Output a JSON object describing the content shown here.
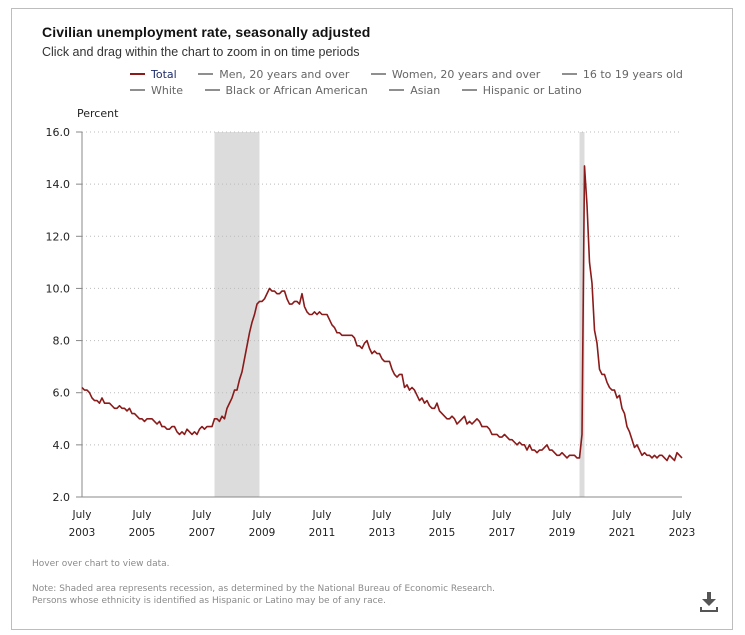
{
  "header": {
    "title": "Civilian unemployment rate, seasonally adjusted",
    "subtitle": "Click and drag within the chart to zoom in on time periods"
  },
  "legend": {
    "rows": [
      [
        {
          "label": "Total",
          "active": true
        },
        {
          "label": "Men, 20 years and over",
          "active": false
        },
        {
          "label": "Women, 20 years and over",
          "active": false
        },
        {
          "label": "16 to 19 years old",
          "active": false
        }
      ],
      [
        {
          "label": "White",
          "active": false
        },
        {
          "label": "Black or African American",
          "active": false
        },
        {
          "label": "Asian",
          "active": false
        },
        {
          "label": "Hispanic or Latino",
          "active": false
        }
      ]
    ]
  },
  "footer": {
    "hover_hint": "Hover over chart to view data.",
    "note_line1": "Note: Shaded area represents recession, as determined by the National Bureau of Economic Research.",
    "note_line2": "Persons whose ethnicity is identified as Hispanic or Latino may be of any race.",
    "download_icon": "download-icon"
  },
  "colors": {
    "series_total": "#8b1a1a",
    "recession_shade": "#dcdcdc",
    "gridline": "#bbbbbb",
    "axis": "#888888"
  },
  "chart_data": {
    "type": "line",
    "title": "Civilian unemployment rate, seasonally adjusted",
    "ylabel": "Percent",
    "xlabel": "",
    "ylim": [
      2.0,
      16.0
    ],
    "yticks": [
      "16.0",
      "14.0",
      "12.0",
      "10.0",
      "8.0",
      "6.0",
      "4.0",
      "2.0"
    ],
    "ytick_values": [
      16,
      14,
      12,
      10,
      8,
      6,
      4,
      2
    ],
    "xlim": [
      "2003-07",
      "2023-07"
    ],
    "xticks": [
      {
        "month": "July",
        "year": "2003",
        "date": "2003-07"
      },
      {
        "month": "July",
        "year": "2005",
        "date": "2005-07"
      },
      {
        "month": "July",
        "year": "2007",
        "date": "2007-07"
      },
      {
        "month": "July",
        "year": "2009",
        "date": "2009-07"
      },
      {
        "month": "July",
        "year": "2011",
        "date": "2011-07"
      },
      {
        "month": "July",
        "year": "2013",
        "date": "2013-07"
      },
      {
        "month": "July",
        "year": "2015",
        "date": "2015-07"
      },
      {
        "month": "July",
        "year": "2017",
        "date": "2017-07"
      },
      {
        "month": "July",
        "year": "2019",
        "date": "2019-07"
      },
      {
        "month": "July",
        "year": "2021",
        "date": "2021-07"
      },
      {
        "month": "July",
        "year": "2023",
        "date": "2023-07"
      }
    ],
    "grid": "horizontal-dotted",
    "legend_position": "top",
    "recessions": [
      {
        "start": "2007-12",
        "end": "2009-06"
      },
      {
        "start": "2020-02",
        "end": "2020-04"
      }
    ],
    "series": [
      {
        "name": "Total",
        "start": "2003-07",
        "frequency": "monthly",
        "values": [
          6.2,
          6.1,
          6.1,
          6.0,
          5.8,
          5.7,
          5.7,
          5.6,
          5.8,
          5.6,
          5.6,
          5.6,
          5.5,
          5.4,
          5.4,
          5.5,
          5.4,
          5.4,
          5.3,
          5.4,
          5.2,
          5.2,
          5.1,
          5.0,
          5.0,
          4.9,
          5.0,
          5.0,
          5.0,
          4.9,
          4.8,
          4.9,
          4.7,
          4.7,
          4.6,
          4.6,
          4.7,
          4.7,
          4.5,
          4.4,
          4.5,
          4.4,
          4.6,
          4.5,
          4.4,
          4.5,
          4.4,
          4.6,
          4.7,
          4.6,
          4.7,
          4.7,
          4.7,
          5.0,
          5.0,
          4.9,
          5.1,
          5.0,
          5.4,
          5.6,
          5.8,
          6.1,
          6.1,
          6.5,
          6.8,
          7.3,
          7.8,
          8.3,
          8.7,
          9.0,
          9.4,
          9.5,
          9.5,
          9.6,
          9.8,
          10.0,
          9.9,
          9.9,
          9.8,
          9.8,
          9.9,
          9.9,
          9.6,
          9.4,
          9.4,
          9.5,
          9.5,
          9.4,
          9.8,
          9.3,
          9.1,
          9.0,
          9.0,
          9.1,
          9.0,
          9.1,
          9.0,
          9.0,
          9.0,
          8.8,
          8.6,
          8.5,
          8.3,
          8.3,
          8.2,
          8.2,
          8.2,
          8.2,
          8.2,
          8.1,
          7.8,
          7.8,
          7.7,
          7.9,
          8.0,
          7.7,
          7.5,
          7.6,
          7.5,
          7.5,
          7.3,
          7.2,
          7.2,
          7.2,
          6.9,
          6.7,
          6.6,
          6.7,
          6.7,
          6.2,
          6.3,
          6.1,
          6.2,
          6.1,
          5.9,
          5.7,
          5.8,
          5.6,
          5.7,
          5.5,
          5.4,
          5.4,
          5.6,
          5.3,
          5.2,
          5.1,
          5.0,
          5.0,
          5.1,
          5.0,
          4.8,
          4.9,
          5.0,
          5.1,
          4.8,
          4.9,
          4.8,
          4.9,
          5.0,
          4.9,
          4.7,
          4.7,
          4.7,
          4.6,
          4.4,
          4.4,
          4.4,
          4.3,
          4.3,
          4.4,
          4.3,
          4.2,
          4.2,
          4.1,
          4.0,
          4.1,
          4.0,
          4.0,
          3.8,
          4.0,
          3.8,
          3.8,
          3.7,
          3.8,
          3.8,
          3.9,
          4.0,
          3.8,
          3.8,
          3.7,
          3.6,
          3.6,
          3.7,
          3.6,
          3.5,
          3.6,
          3.6,
          3.6,
          3.5,
          3.5,
          4.4,
          14.7,
          13.2,
          11.0,
          10.2,
          8.4,
          7.9,
          6.9,
          6.7,
          6.7,
          6.4,
          6.2,
          6.1,
          6.1,
          5.8,
          5.9,
          5.4,
          5.2,
          4.7,
          4.5,
          4.2,
          3.9,
          4.0,
          3.8,
          3.6,
          3.7,
          3.6,
          3.6,
          3.5,
          3.6,
          3.5,
          3.6,
          3.6,
          3.5,
          3.4,
          3.6,
          3.5,
          3.4,
          3.7,
          3.6,
          3.5
        ]
      }
    ]
  }
}
